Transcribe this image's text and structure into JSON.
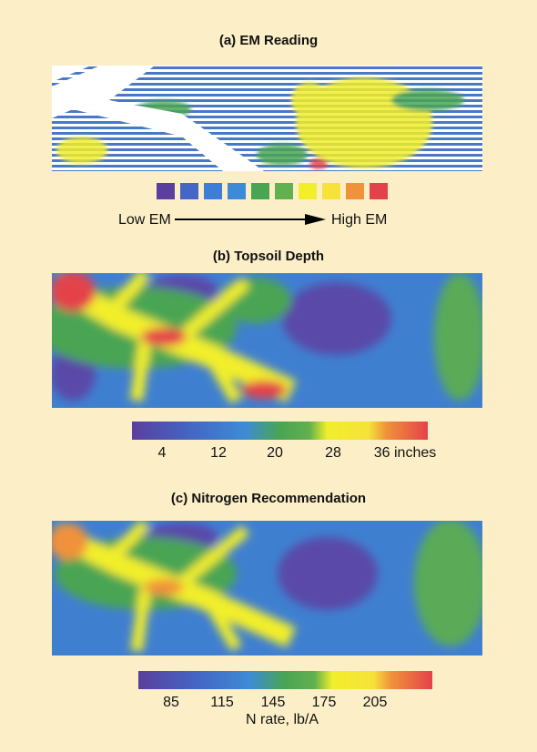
{
  "panels": [
    {
      "title": "(a) EM Reading",
      "legend": {
        "low": "Low EM",
        "high": "High EM"
      }
    },
    {
      "title": "(b) Topsoil Depth",
      "scale_labels": [
        4,
        12,
        20,
        28,
        "36 inches"
      ]
    },
    {
      "title": "(c) Nitrogen Recommendation",
      "scale_labels": [
        85,
        115,
        145,
        175,
        205
      ],
      "scale_title": "N rate, lb/A"
    }
  ]
}
